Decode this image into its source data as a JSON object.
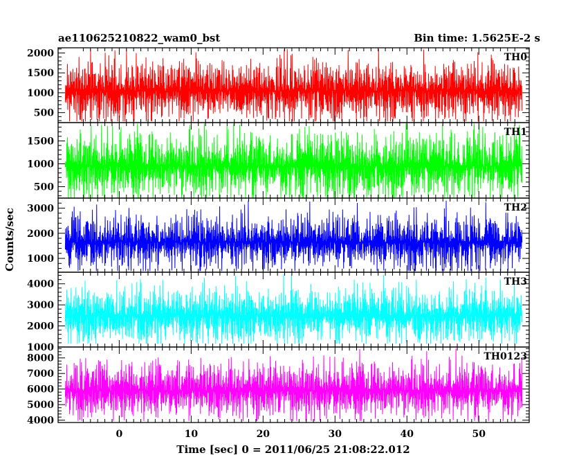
{
  "title_left": "ae110625210822_wam0_bst",
  "title_right": "Bin time: 1.5625E-2 s",
  "xlabel": "Time [sec] 0 = 2011/06/25 21:08:22.012",
  "ylabel": "Counts/sec",
  "chart_data": {
    "type": "line",
    "x_range": [
      -8.5,
      57
    ],
    "x_ticks": [
      0,
      10,
      20,
      30,
      40,
      50
    ],
    "data_x_range": [
      -7.5,
      56
    ],
    "panels": [
      {
        "name": "TH0",
        "color": "#ff0000",
        "ylim": [
          250,
          2130
        ],
        "yticks": [
          500,
          1000,
          1500,
          2000
        ],
        "mean": 1050,
        "spread": 300,
        "min_value": 280,
        "max_value": 2100
      },
      {
        "name": "TH1",
        "color": "#00ff00",
        "ylim": [
          250,
          1900
        ],
        "yticks": [
          500,
          1000,
          1500
        ],
        "mean": 950,
        "spread": 290,
        "min_value": 260,
        "max_value": 1880
      },
      {
        "name": "TH2",
        "color": "#0000ff",
        "ylim": [
          450,
          3400
        ],
        "yticks": [
          1000,
          2000,
          3000
        ],
        "mean": 1650,
        "spread": 430,
        "min_value": 500,
        "max_value": 3300
      },
      {
        "name": "TH3",
        "color": "#00ffff",
        "ylim": [
          1000,
          4550
        ],
        "yticks": [
          1000,
          2000,
          3000,
          4000
        ],
        "mean": 2500,
        "spread": 520,
        "min_value": 1150,
        "max_value": 4450
      },
      {
        "name": "TH0123",
        "color": "#ff00ff",
        "ylim": [
          3850,
          8700
        ],
        "yticks": [
          4000,
          5000,
          6000,
          7000,
          8000
        ],
        "mean": 5900,
        "spread": 720,
        "min_value": 3950,
        "max_value": 8600
      }
    ]
  }
}
